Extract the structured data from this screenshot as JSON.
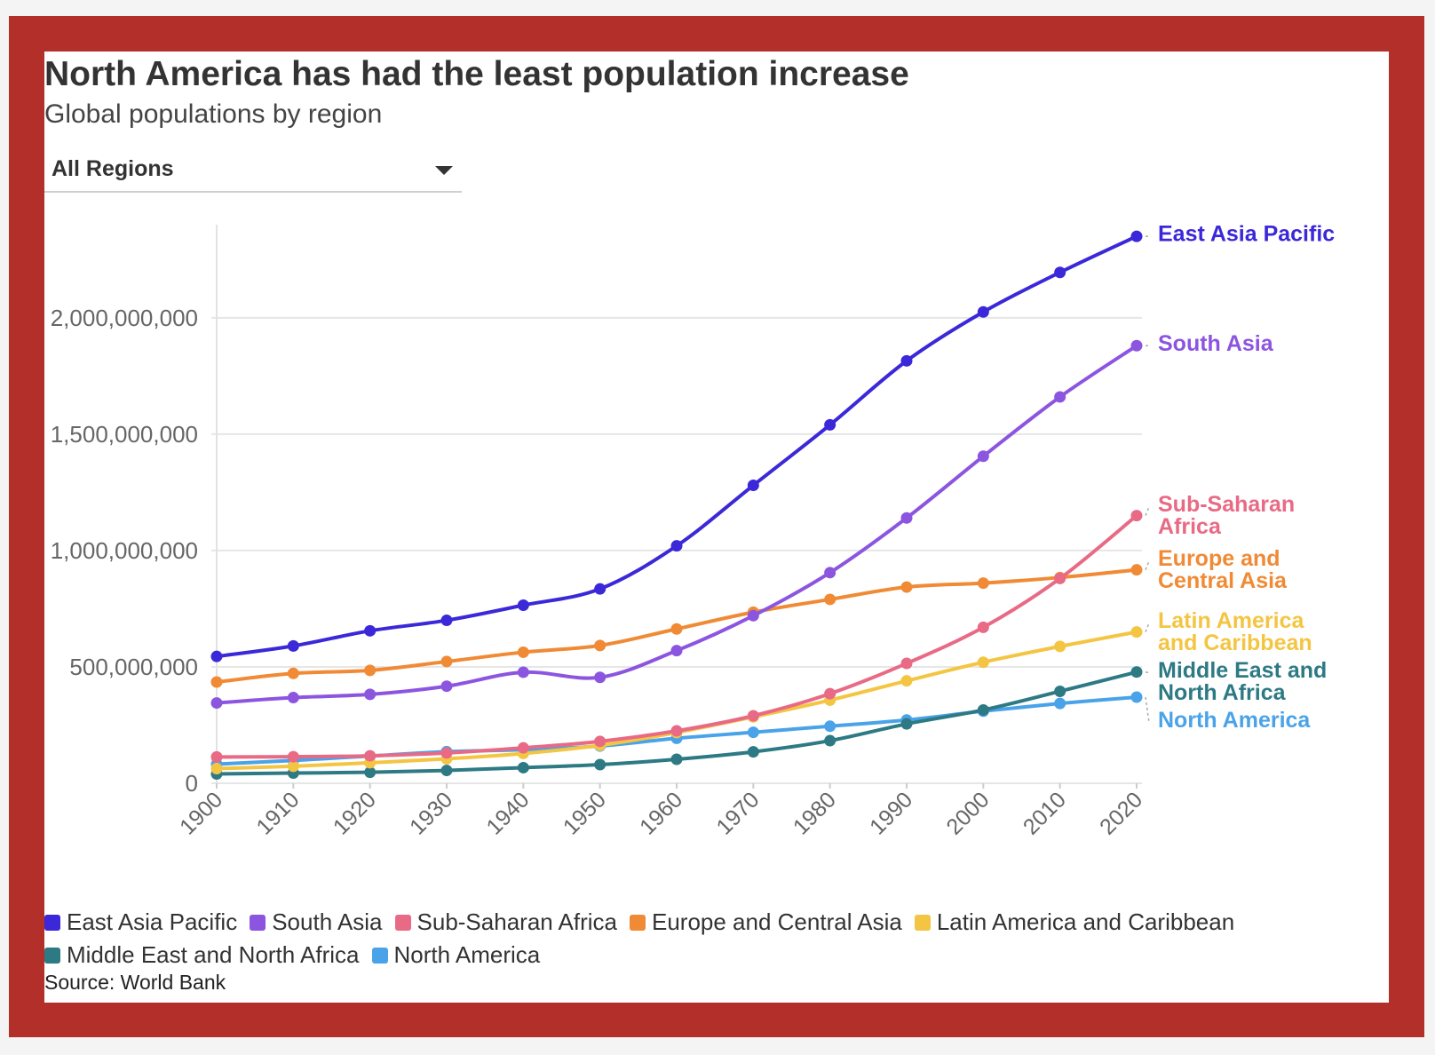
{
  "colors": {
    "frame": "#b22f2a",
    "grid": "#e6e6e6",
    "axis_text": "#666666"
  },
  "header": {
    "title": "North America has had the least population increase",
    "subtitle": "Global populations by region"
  },
  "filter": {
    "selected": "All Regions",
    "icon": "chevron-down-icon"
  },
  "chart_data": {
    "type": "line",
    "title": "North America has had the least population increase",
    "subtitle": "Global populations by region",
    "xlabel": "",
    "ylabel": "",
    "x": [
      1900,
      1910,
      1920,
      1930,
      1940,
      1950,
      1960,
      1970,
      1980,
      1990,
      2000,
      2010,
      2020
    ],
    "x_tick_labels": [
      "1900",
      "1910",
      "1920",
      "1930",
      "1940",
      "1950",
      "1960",
      "1970",
      "1980",
      "1990",
      "2000",
      "2010",
      "2020"
    ],
    "ylim": [
      0,
      2400000000
    ],
    "y_ticks": [
      0,
      500000000,
      1000000000,
      1500000000,
      2000000000
    ],
    "y_tick_labels": [
      "0",
      "500,000,000",
      "1,000,000,000",
      "1,500,000,000",
      "2,000,000,000"
    ],
    "grid": true,
    "legend_position": "bottom",
    "series": [
      {
        "name": "East Asia Pacific",
        "end_label": [
          "East Asia Pacific"
        ],
        "color": "#3b28d8",
        "values": [
          545000000,
          590000000,
          655000000,
          700000000,
          765000000,
          835000000,
          1020000000,
          1280000000,
          1540000000,
          1815000000,
          2025000000,
          2195000000,
          2350000000
        ]
      },
      {
        "name": "South Asia",
        "end_label": [
          "South Asia"
        ],
        "color": "#8c55e0",
        "values": [
          345000000,
          368000000,
          382000000,
          417000000,
          477000000,
          455000000,
          570000000,
          720000000,
          905000000,
          1140000000,
          1405000000,
          1660000000,
          1880000000
        ]
      },
      {
        "name": "Sub-Saharan Africa",
        "end_label": [
          "Sub-Saharan",
          "Africa"
        ],
        "color": "#e86a85",
        "values": [
          113000000,
          114000000,
          118000000,
          130000000,
          152000000,
          180000000,
          225000000,
          290000000,
          385000000,
          515000000,
          670000000,
          880000000,
          1150000000
        ]
      },
      {
        "name": "Europe and Central Asia",
        "end_label": [
          "Europe and",
          "Central Asia"
        ],
        "color": "#f08a35",
        "values": [
          435000000,
          472000000,
          485000000,
          523000000,
          563000000,
          592000000,
          663000000,
          735000000,
          790000000,
          843000000,
          860000000,
          884000000,
          917000000
        ]
      },
      {
        "name": "Latin America and Caribbean",
        "end_label": [
          "Latin America",
          "and Caribbean"
        ],
        "color": "#f4c542",
        "values": [
          63000000,
          73000000,
          88000000,
          105000000,
          128000000,
          163000000,
          218000000,
          285000000,
          357000000,
          440000000,
          520000000,
          588000000,
          650000000
        ]
      },
      {
        "name": "Middle East and North Africa",
        "end_label": [
          "Middle East and",
          "North Africa"
        ],
        "color": "#2d7a84",
        "values": [
          40000000,
          44000000,
          47000000,
          55000000,
          67000000,
          80000000,
          103000000,
          135000000,
          183000000,
          255000000,
          315000000,
          395000000,
          478000000
        ]
      },
      {
        "name": "North America",
        "end_label": [
          "North America"
        ],
        "color": "#4aa3e8",
        "values": [
          82000000,
          98000000,
          117000000,
          136000000,
          144000000,
          160000000,
          193000000,
          219000000,
          245000000,
          272000000,
          310000000,
          343000000,
          370000000
        ]
      }
    ]
  },
  "footer": {
    "source": "Source: World Bank"
  }
}
